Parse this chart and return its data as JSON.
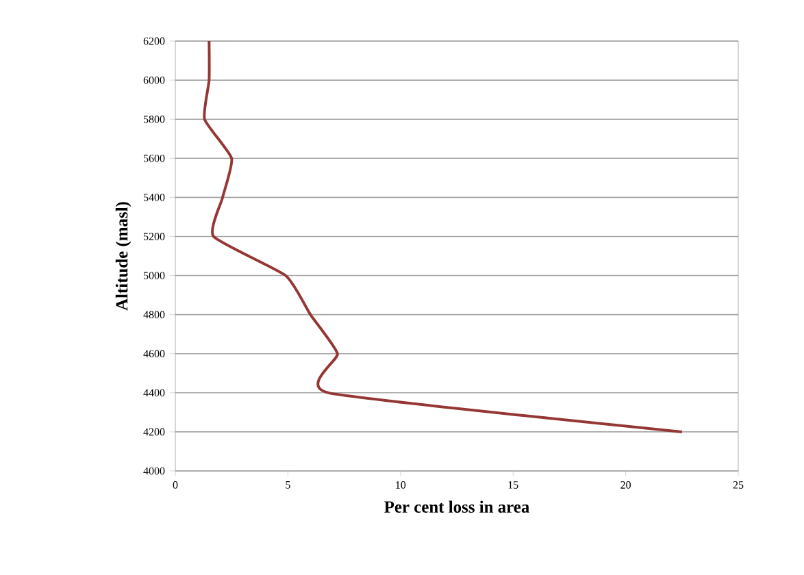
{
  "chart_data": {
    "type": "line",
    "xlabel": "Per cent loss in area",
    "ylabel": "Altitude (masl)",
    "series": [
      {
        "color": "#953735",
        "x": [
          1.5,
          1.5,
          1.3,
          2.5,
          2.1,
          1.7,
          4.9,
          6.0,
          7.2,
          6.8,
          22.5
        ],
        "values": [
          6200,
          6000,
          5800,
          5600,
          5400,
          5200,
          5000,
          4800,
          4600,
          4400,
          4200
        ]
      }
    ],
    "xlim": [
      0,
      25
    ],
    "xticks": [
      0,
      5,
      10,
      15,
      20,
      25
    ],
    "ylim": [
      4000,
      6200
    ],
    "yticks": [
      4000,
      4200,
      4400,
      4600,
      4800,
      5000,
      5200,
      5400,
      5600,
      5800,
      6000,
      6200
    ],
    "grid": "y",
    "marker": "none",
    "line_style": "solid"
  }
}
